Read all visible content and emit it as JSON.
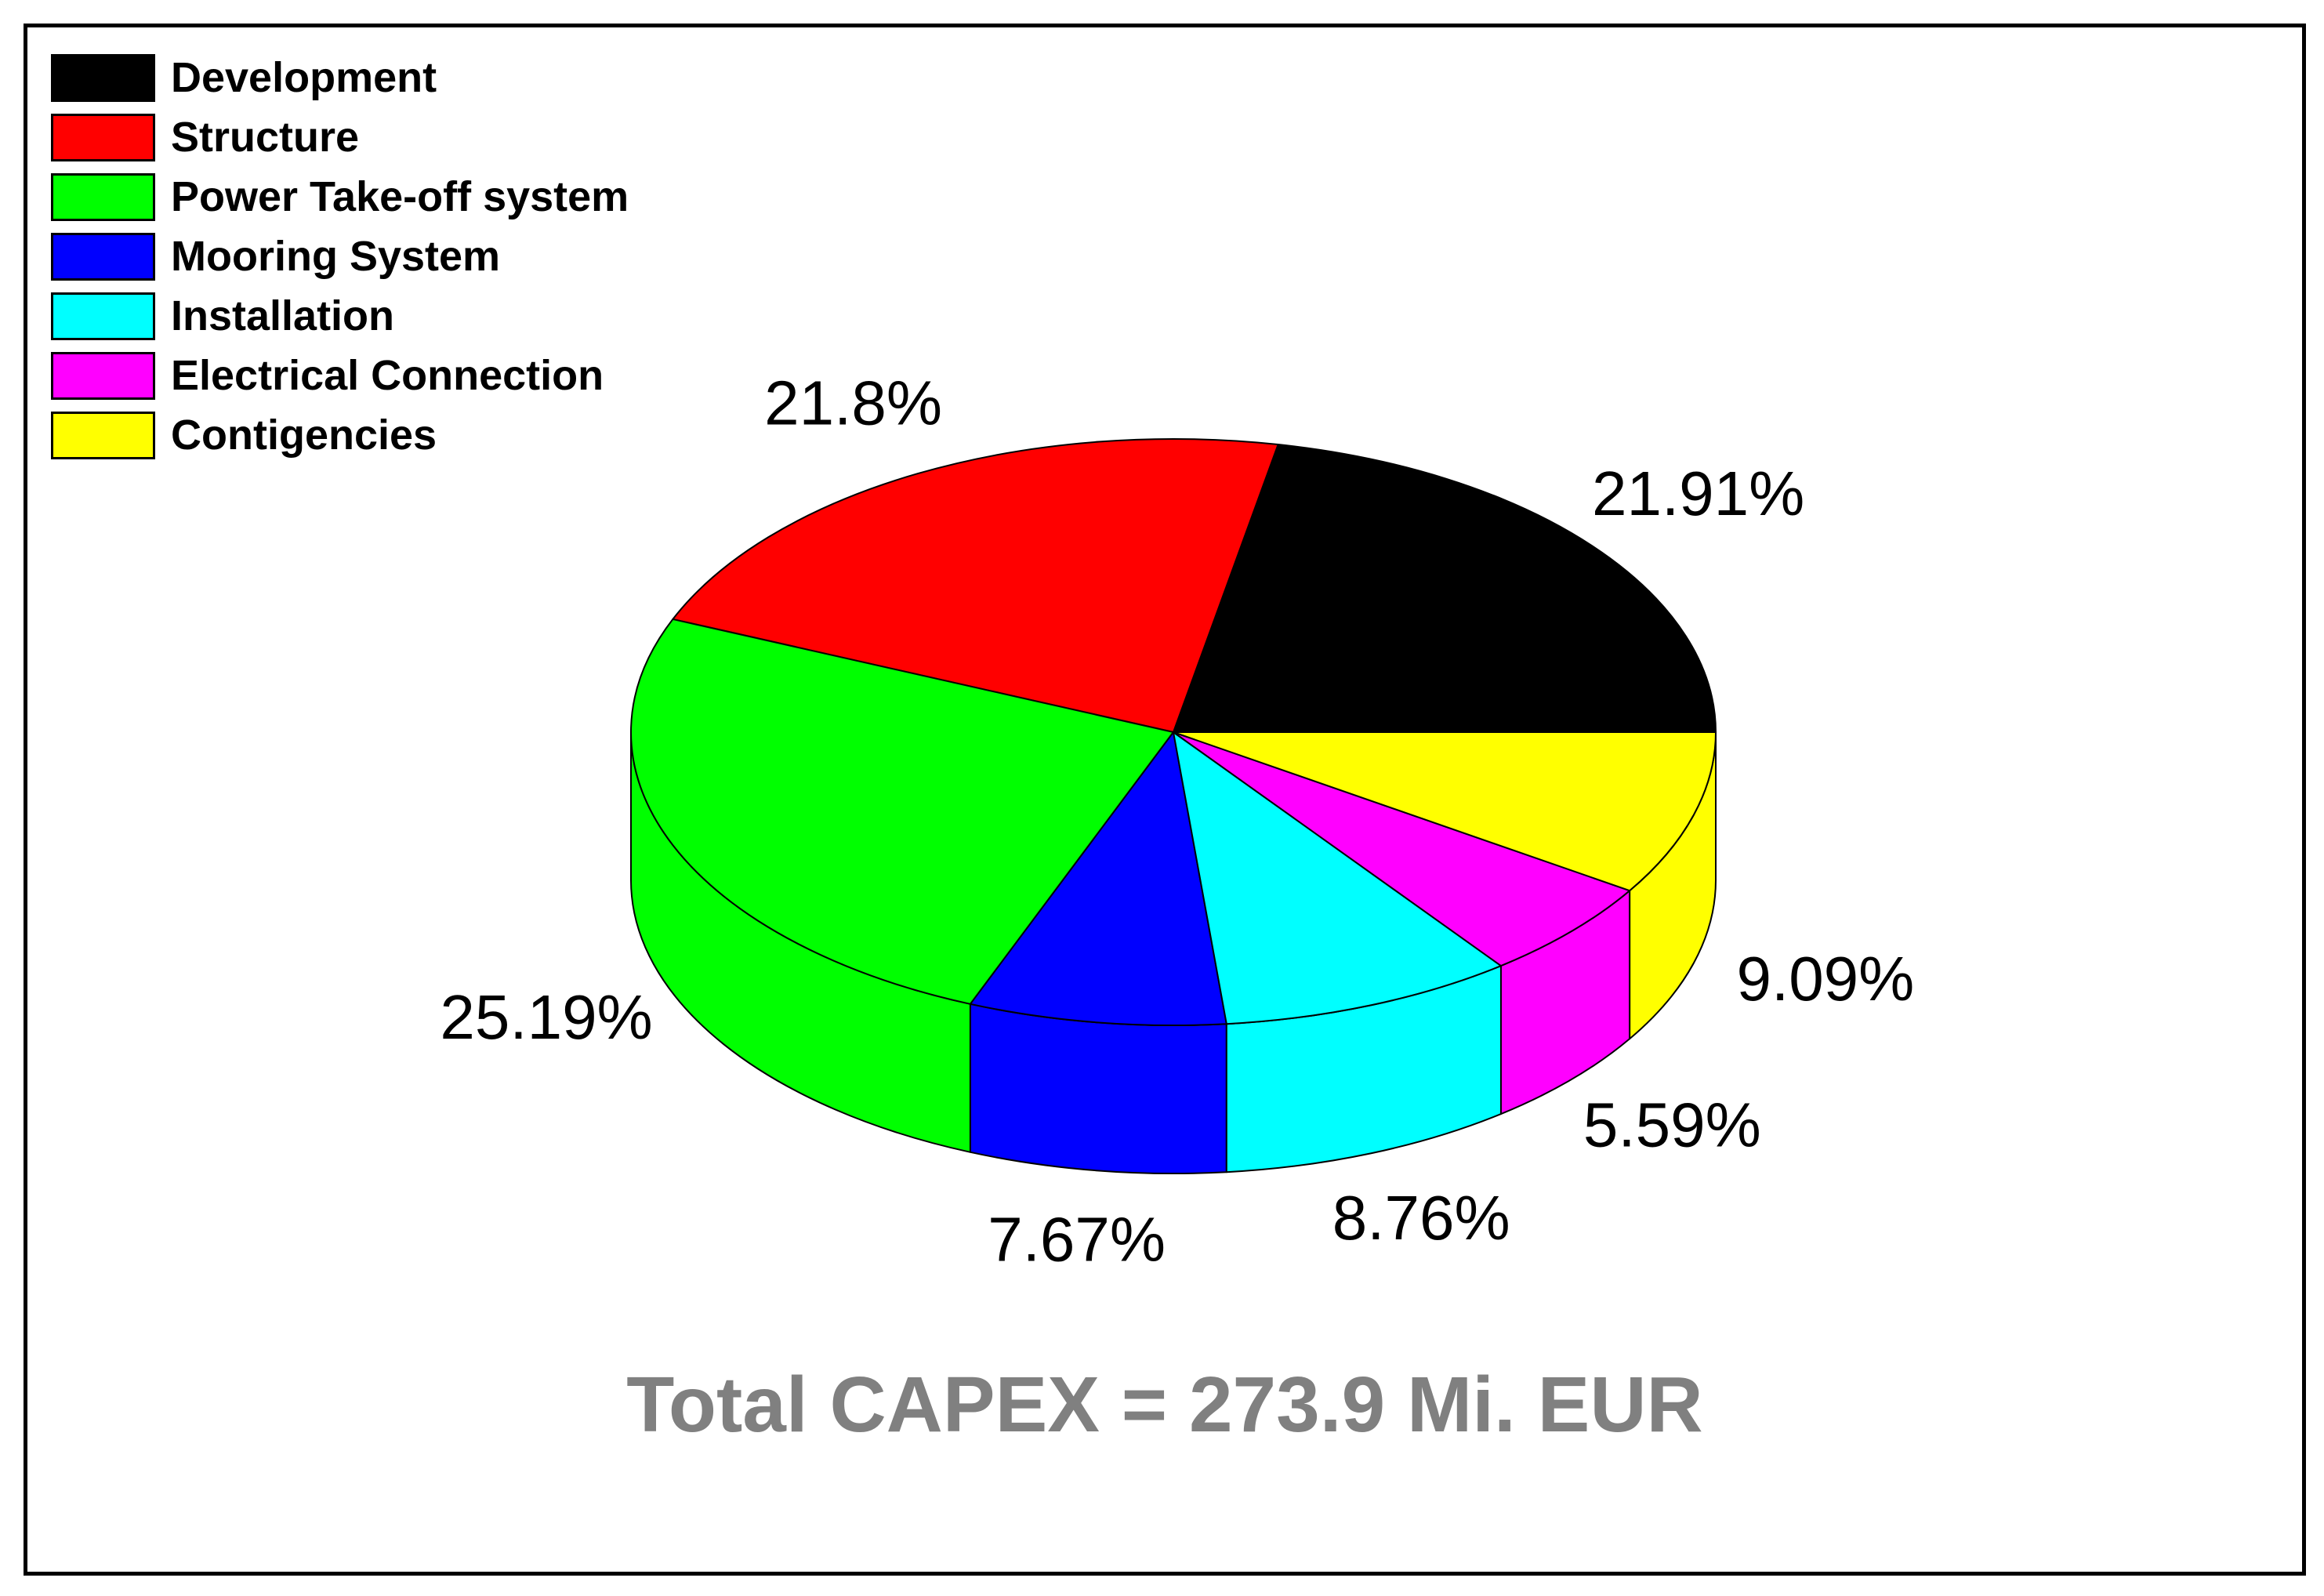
{
  "chart_data": {
    "type": "pie",
    "style": "3d",
    "start_angle_deg": 0,
    "direction": "counterclockwise",
    "categories": [
      "Development",
      "Structure",
      "Power Take-off system",
      "Mooring System",
      "Installation",
      "Electrical Connection",
      "Contigencies"
    ],
    "values": [
      21.91,
      21.8,
      25.19,
      7.67,
      8.76,
      5.59,
      9.09
    ],
    "labels": [
      "21.91%",
      "21.8%",
      "25.19%",
      "7.67%",
      "8.76%",
      "5.59%",
      "9.09%"
    ],
    "colors": [
      "#000000",
      "#ff0000",
      "#00ff00",
      "#0000ff",
      "#00ffff",
      "#ff00ff",
      "#ffff00"
    ],
    "legend_position": "top-left",
    "annotation": "Total CAPEX = 273.9 Mi. EUR",
    "annotation_color": "#808080"
  }
}
